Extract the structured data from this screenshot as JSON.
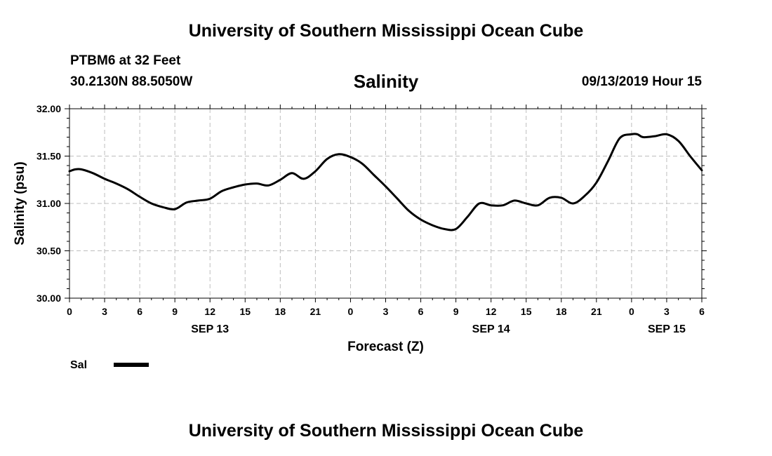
{
  "header": {
    "title": "University of Southern Mississippi Ocean Cube",
    "station": "PTBM6 at 32 Feet",
    "coordinates": "30.2130N 88.5050W",
    "datetime": "09/13/2019 Hour 15"
  },
  "footer": {
    "title": "University of Southern Mississippi Ocean Cube"
  },
  "colors": {
    "line": "#000000",
    "grid": "#bdbdbd",
    "axis": "#000000",
    "background": "#ffffff"
  },
  "chart_data": {
    "type": "line",
    "title": "Salinity",
    "xlabel": "Forecast (Z)",
    "ylabel": "Salinity (psu)",
    "grid": true,
    "xlim": [
      0,
      54
    ],
    "ylim": [
      30.0,
      32.0
    ],
    "x_ticks": [
      0,
      3,
      6,
      9,
      12,
      15,
      18,
      21,
      24,
      27,
      30,
      33,
      36,
      39,
      42,
      45,
      48,
      51,
      54
    ],
    "x_tick_labels": [
      "0",
      "3",
      "6",
      "9",
      "12",
      "15",
      "18",
      "21",
      "0",
      "3",
      "6",
      "9",
      "12",
      "15",
      "18",
      "21",
      "0",
      "3",
      "6"
    ],
    "y_ticks": [
      30.0,
      30.5,
      31.0,
      31.5,
      32.0
    ],
    "y_tick_labels": [
      "30.00",
      "30.50",
      "31.00",
      "31.50",
      "32.00"
    ],
    "date_labels": [
      {
        "x": 12,
        "label": "SEP 13"
      },
      {
        "x": 36,
        "label": "SEP 14"
      },
      {
        "x": 51,
        "label": "SEP 15"
      }
    ],
    "legend": {
      "placement": "bottom-left",
      "entries": [
        "Sal"
      ]
    },
    "series": [
      {
        "name": "Sal",
        "x": [
          0,
          0.5,
          1,
          2,
          3,
          4,
          5,
          6,
          7,
          8,
          9,
          10,
          11,
          12,
          13,
          14,
          15,
          16,
          17,
          18,
          19,
          20,
          21,
          22,
          23,
          24,
          25,
          26,
          27,
          28,
          29,
          30,
          31,
          32,
          33,
          34,
          35,
          36,
          37,
          38,
          39,
          40,
          41,
          42,
          43,
          44,
          45,
          46,
          47,
          48,
          48.5,
          49,
          50,
          51,
          52,
          53,
          54
        ],
        "values": [
          31.34,
          31.36,
          31.36,
          31.32,
          31.26,
          31.21,
          31.15,
          31.07,
          31.0,
          30.96,
          30.94,
          31.01,
          31.03,
          31.05,
          31.13,
          31.17,
          31.2,
          31.21,
          31.19,
          31.25,
          31.32,
          31.26,
          31.34,
          31.47,
          31.52,
          31.49,
          31.42,
          31.3,
          31.18,
          31.05,
          30.92,
          30.83,
          30.77,
          30.73,
          30.73,
          30.86,
          31.0,
          30.98,
          30.98,
          31.03,
          31.0,
          30.98,
          31.06,
          31.06,
          31.0,
          31.08,
          31.22,
          31.45,
          31.69,
          31.73,
          31.73,
          31.7,
          31.71,
          31.73,
          31.66,
          31.5,
          31.35
        ]
      }
    ]
  }
}
